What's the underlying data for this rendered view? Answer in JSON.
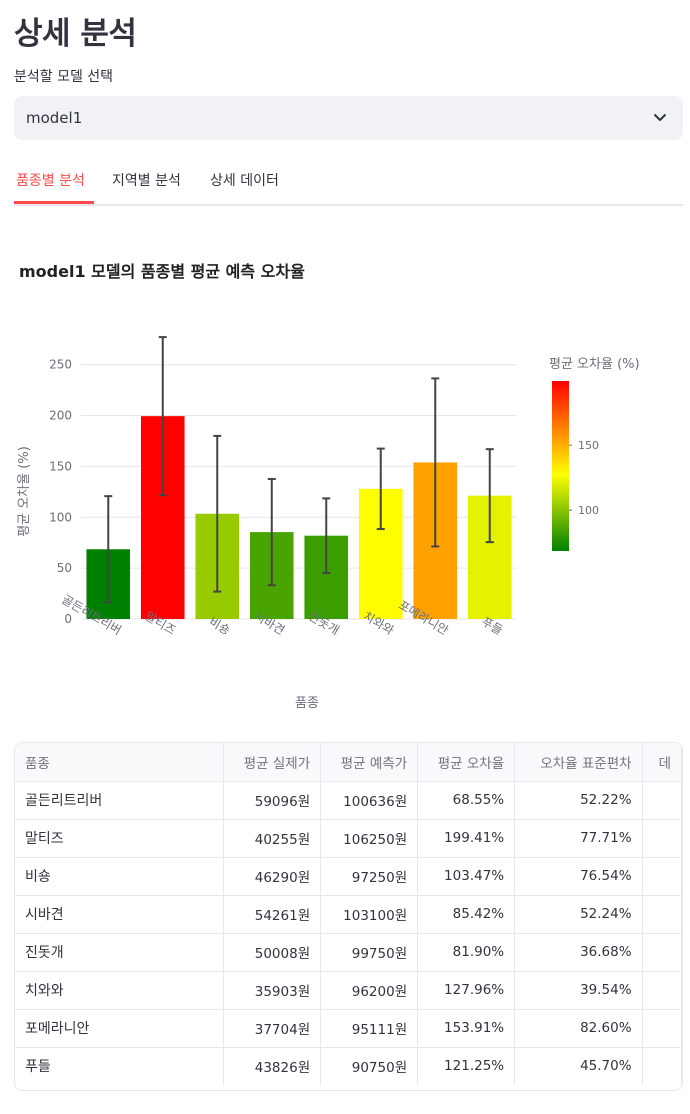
{
  "page": {
    "title": "상세 분석"
  },
  "select": {
    "label": "분석할 모델 선택",
    "value": "model1",
    "icon": "chevron-down-icon"
  },
  "tabs": [
    {
      "label": "품종별 분석",
      "active": true
    },
    {
      "label": "지역별 분석",
      "active": false
    },
    {
      "label": "상세 데이터",
      "active": false
    }
  ],
  "colors": {
    "accent": "#ff4b4b"
  },
  "chart_data": {
    "type": "bar",
    "title": "model1 모델의 품종별 평균 예측 오차율",
    "xlabel": "품종",
    "ylabel": "평균 오차율 (%)",
    "categories": [
      "골든리트리버",
      "말티즈",
      "비숑",
      "시바견",
      "진돗개",
      "치와와",
      "포메라니안",
      "푸들"
    ],
    "values": [
      68.55,
      199.41,
      103.47,
      85.42,
      81.9,
      127.96,
      153.91,
      121.25
    ],
    "error": [
      52.22,
      77.71,
      76.54,
      52.24,
      36.68,
      39.54,
      82.6,
      45.7
    ],
    "ylim": [
      0,
      290
    ],
    "yticks": [
      0,
      50,
      100,
      150,
      200,
      250
    ],
    "grid": true,
    "colorbar": {
      "title": "평균 오차율 (%)",
      "ticks": [
        100,
        150
      ],
      "range": [
        68.55,
        199.41
      ],
      "colors": [
        "#008000",
        "#ffff00",
        "#ff0000"
      ]
    }
  },
  "table": {
    "columns": [
      "품종",
      "평균 실제가",
      "평균 예측가",
      "평균 오차율",
      "오차율 표준편차",
      "데"
    ],
    "rows": [
      [
        "골든리트리버",
        "59096원",
        "100636원",
        "68.55%",
        "52.22%",
        ""
      ],
      [
        "말티즈",
        "40255원",
        "106250원",
        "199.41%",
        "77.71%",
        ""
      ],
      [
        "비숑",
        "46290원",
        "97250원",
        "103.47%",
        "76.54%",
        ""
      ],
      [
        "시바견",
        "54261원",
        "103100원",
        "85.42%",
        "52.24%",
        ""
      ],
      [
        "진돗개",
        "50008원",
        "99750원",
        "81.90%",
        "36.68%",
        ""
      ],
      [
        "치와와",
        "35903원",
        "96200원",
        "127.96%",
        "39.54%",
        ""
      ],
      [
        "포메라니안",
        "37704원",
        "95111원",
        "153.91%",
        "82.60%",
        ""
      ],
      [
        "푸들",
        "43826원",
        "90750원",
        "121.25%",
        "45.70%",
        ""
      ]
    ]
  }
}
